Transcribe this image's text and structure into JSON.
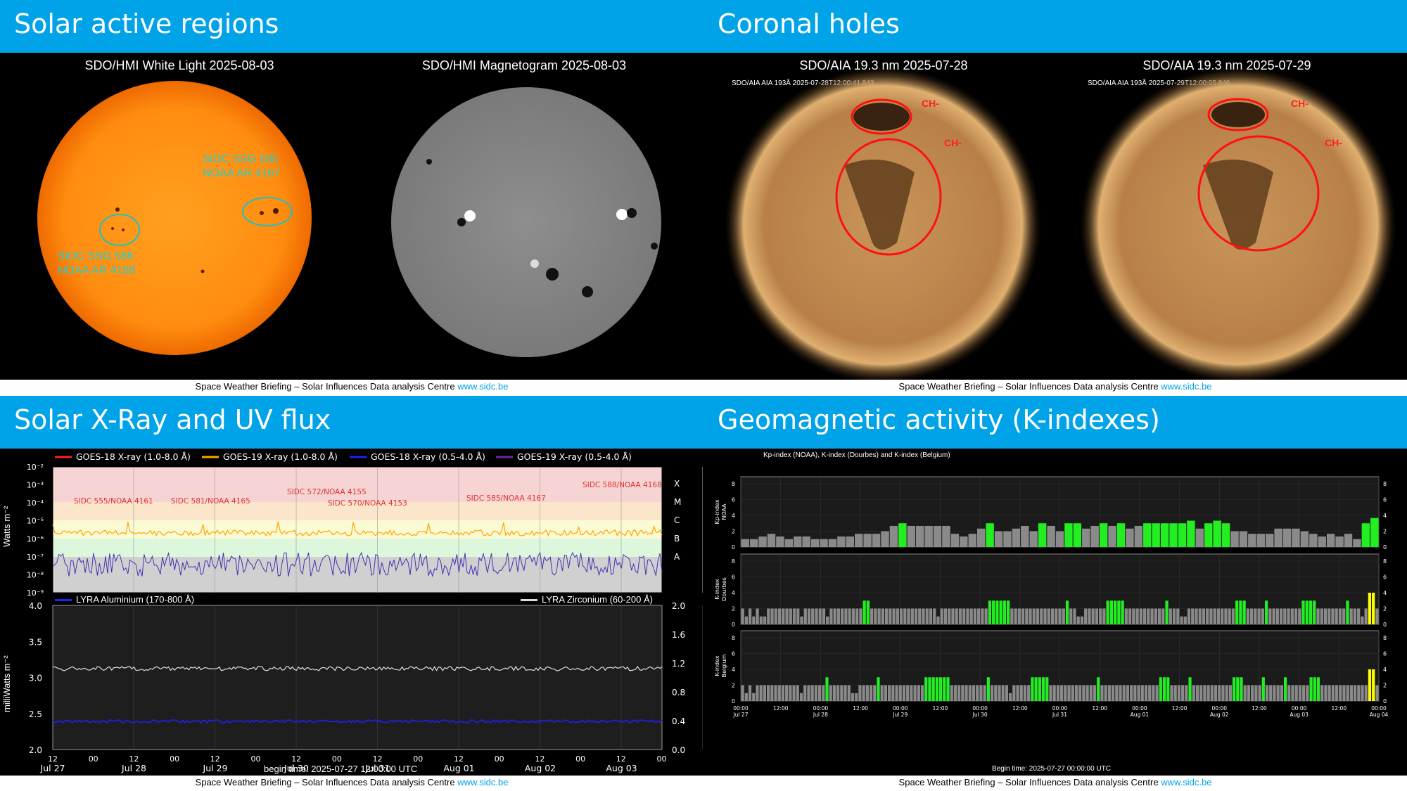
{
  "footer": {
    "text": "Space Weather Briefing – Solar Influences Data analysis Centre ",
    "link": "www.sidc.be"
  },
  "active": {
    "title": "Solar active regions",
    "left_caption": "SDO/HMI White Light 2025-08-03",
    "right_caption": "SDO/HMI Magnetogram 2025-08-03",
    "label_a1": "SIDC SSG 585",
    "label_a2": "NOAA AR 4167",
    "label_b1": "SIDC SSG 588",
    "label_b2": "NOAA AR 4168"
  },
  "coronal": {
    "title": "Coronal holes",
    "left_caption": "SDO/AIA 19.3 nm 2025-07-28",
    "right_caption": "SDO/AIA 19.3 nm 2025-07-29",
    "left_stamp": "SDO/AIA AIA 193Å 2025-07-28T12:00:41.843",
    "right_stamp": "SDO/AIA AIA 193Å 2025-07-29T12:00:05.846",
    "ch_label": "CH-"
  },
  "xray": {
    "title": "Solar X-Ray and UV flux",
    "legend": [
      "GOES-18 X-ray (1.0-8.0 Å)",
      "GOES-19 X-ray (1.0-8.0 Å)",
      "GOES-18 X-ray (0.5-4.0 Å)",
      "GOES-19 X-ray (0.5-4.0 Å)"
    ],
    "legend_colors": [
      "#ff2020",
      "#ffa500",
      "#2020ff",
      "#6a2aa0"
    ],
    "ylabel_top": "Watts m⁻²",
    "ylabel_bottom": "milliWatts m⁻²",
    "yticks_top": [
      "10⁻²",
      "10⁻³",
      "10⁻⁴",
      "10⁻⁵",
      "10⁻⁶",
      "10⁻⁷",
      "10⁻⁸",
      "10⁻⁹"
    ],
    "classes": [
      "X",
      "M",
      "C",
      "B",
      "A"
    ],
    "region_labels": [
      "SIDC 555/NOAA 4161",
      "SIDC 581/NOAA 4165",
      "SIDC 572/NOAA 4155",
      "SIDC 570/NOAA 4153",
      "SIDC 585/NOAA 4167",
      "SIDC 588/NOAA 4168"
    ],
    "lyra_legend_left": "LYRA Aluminium (170-800 Å)",
    "lyra_legend_right": "LYRA Zirconium (60-200 Å)",
    "yticks_bottom_left": [
      "4.0",
      "3.5",
      "3.0",
      "2.5",
      "2.0"
    ],
    "yticks_bottom_right": [
      "2.0",
      "1.6",
      "1.2",
      "0.8",
      "0.4",
      "0.0"
    ],
    "xticks_top": [
      "12",
      "00",
      "12",
      "00",
      "12",
      "00",
      "12",
      "00",
      "12",
      "00",
      "12",
      "00",
      "12",
      "00",
      "12",
      "00"
    ],
    "xticks_bottom": [
      "Jul 27",
      "Jul 28",
      "Jul 29",
      "Jul 30",
      "Jul 31",
      "Aug 01",
      "Aug 02",
      "Aug 03"
    ],
    "begin_time": "begin time: 2025-07-27 12:00:00 UTC"
  },
  "geomag": {
    "title": "Geomagnetic activity (K-indexes)",
    "chart_title": "Kp-index (NOAA), K-index (Dourbes) and K-index (Belgium)",
    "panel_labels": [
      "Kp-index\nNOAA",
      "K-index\nDourbes",
      "K-index\nBelgium"
    ],
    "panel_label_lines": [
      [
        "Kp-index",
        "NOAA"
      ],
      [
        "K-index",
        "Dourbes"
      ],
      [
        "K-index",
        "Belgium"
      ]
    ],
    "yticks": [
      "8",
      "6",
      "4",
      "2",
      "0"
    ],
    "xtick_times": [
      "00:00",
      "12:00",
      "00:00",
      "12:00",
      "00:00",
      "12:00",
      "00:00",
      "12:00",
      "00:00",
      "12:00",
      "00:00",
      "12:00",
      "00:00",
      "12:00",
      "00:00",
      "12:00",
      "00:00"
    ],
    "xtick_dates": [
      "Jul 27",
      "",
      "Jul 28",
      "",
      "Jul 29",
      "",
      "Jul 30",
      "",
      "Jul 31",
      "",
      "Aug 01",
      "",
      "Aug 02",
      "",
      "Aug 03",
      "",
      "Aug 04"
    ],
    "begin_time": "Begin time: 2025-07-27 00:00:00 UTC",
    "colors": {
      "low": "#8a8a8a",
      "active": "#22ee22",
      "storm": "#ffff00"
    }
  },
  "chart_data": [
    {
      "type": "bar",
      "title": "Kp-index (NOAA), K-index (Dourbes) and K-index (Belgium)",
      "ylabel": "Kp-index NOAA",
      "ylim": [
        0,
        9
      ],
      "x_start": "2025-07-27 00:00",
      "interval_hours": 3,
      "values": [
        1,
        1,
        1.33,
        1.67,
        1.33,
        1,
        1.33,
        1.33,
        1,
        1,
        1,
        1.33,
        1.33,
        1.67,
        1.67,
        1.67,
        2,
        2.67,
        3,
        2.67,
        2.67,
        2.67,
        2.67,
        2.67,
        1.67,
        1.33,
        1.67,
        2.33,
        3,
        2,
        2,
        2.33,
        2.67,
        2,
        3,
        2.67,
        2,
        3,
        3,
        2.33,
        2.67,
        3,
        2.67,
        3,
        2.33,
        2.67,
        3,
        3,
        3,
        3,
        3,
        3.33,
        2.33,
        3,
        3.33,
        3,
        2,
        2,
        1.67,
        1.67,
        1.67,
        2.33,
        2.33,
        2.33,
        2,
        1.67,
        1.33,
        1.67,
        1.33,
        1.67,
        1,
        3,
        3.67
      ]
    },
    {
      "type": "bar",
      "ylabel": "K-index Dourbes",
      "ylim": [
        0,
        9
      ],
      "x_start": "2025-07-27 00:00",
      "interval_minutes": 60,
      "values": [
        2,
        1,
        2,
        1,
        2,
        1,
        1,
        2,
        2,
        2,
        2,
        2,
        2,
        2,
        2,
        2,
        1,
        2,
        2,
        2,
        2,
        2,
        2,
        1,
        2,
        2,
        2,
        2,
        2,
        2,
        2,
        2,
        2,
        3,
        3,
        2,
        2,
        2,
        2,
        2,
        2,
        2,
        2,
        2,
        2,
        2,
        2,
        2,
        2,
        2,
        2,
        2,
        2,
        1,
        2,
        2,
        2,
        2,
        2,
        2,
        2,
        2,
        2,
        2,
        2,
        2,
        2,
        3,
        3,
        3,
        3,
        3,
        3,
        2,
        2,
        2,
        2,
        2,
        2,
        2,
        2,
        2,
        2,
        2,
        2,
        2,
        2,
        2,
        3,
        2,
        2,
        1,
        1,
        2,
        2,
        2,
        2,
        2,
        2,
        3,
        3,
        3,
        3,
        3,
        2,
        2,
        2,
        2,
        2,
        2,
        2,
        2,
        2,
        2,
        2,
        3,
        2,
        2,
        2,
        1,
        1,
        2,
        2,
        2,
        2,
        2,
        2,
        2,
        2,
        2,
        2,
        2,
        2,
        2,
        3,
        3,
        3,
        2,
        2,
        2,
        2,
        2,
        3,
        2,
        2,
        2,
        2,
        2,
        2,
        2,
        2,
        2,
        3,
        3,
        3,
        3,
        2,
        2,
        2,
        2,
        2,
        2,
        2,
        2,
        3,
        2,
        2,
        2,
        1,
        2,
        4,
        4,
        2
      ]
    },
    {
      "type": "bar",
      "ylabel": "K-index Belgium",
      "ylim": [
        0,
        9
      ],
      "x_start": "2025-07-27 00:00",
      "interval_minutes": 60,
      "values": [
        2,
        1,
        2,
        1,
        2,
        2,
        2,
        2,
        2,
        2,
        2,
        2,
        2,
        2,
        2,
        2,
        1,
        2,
        2,
        2,
        2,
        2,
        2,
        3,
        2,
        2,
        2,
        2,
        2,
        2,
        1,
        1,
        2,
        2,
        2,
        2,
        2,
        3,
        2,
        2,
        2,
        2,
        2,
        2,
        2,
        2,
        2,
        2,
        2,
        2,
        3,
        3,
        3,
        3,
        3,
        3,
        3,
        2,
        2,
        2,
        2,
        2,
        2,
        2,
        2,
        2,
        2,
        3,
        2,
        2,
        2,
        2,
        2,
        1,
        2,
        2,
        2,
        2,
        2,
        3,
        3,
        3,
        3,
        3,
        2,
        2,
        2,
        2,
        2,
        2,
        2,
        2,
        2,
        2,
        2,
        2,
        2,
        3,
        2,
        2,
        2,
        2,
        2,
        2,
        2,
        2,
        2,
        2,
        2,
        2,
        2,
        2,
        2,
        2,
        3,
        3,
        3,
        2,
        2,
        2,
        2,
        2,
        3,
        2,
        2,
        2,
        2,
        2,
        2,
        2,
        2,
        2,
        2,
        2,
        3,
        3,
        3,
        2,
        2,
        2,
        2,
        2,
        3,
        2,
        2,
        2,
        2,
        2,
        3,
        2,
        2,
        2,
        2,
        2,
        2,
        3,
        3,
        3,
        2,
        2,
        2,
        2,
        2,
        2,
        2,
        2,
        2,
        2,
        2,
        2,
        2,
        4,
        4,
        2
      ]
    }
  ]
}
